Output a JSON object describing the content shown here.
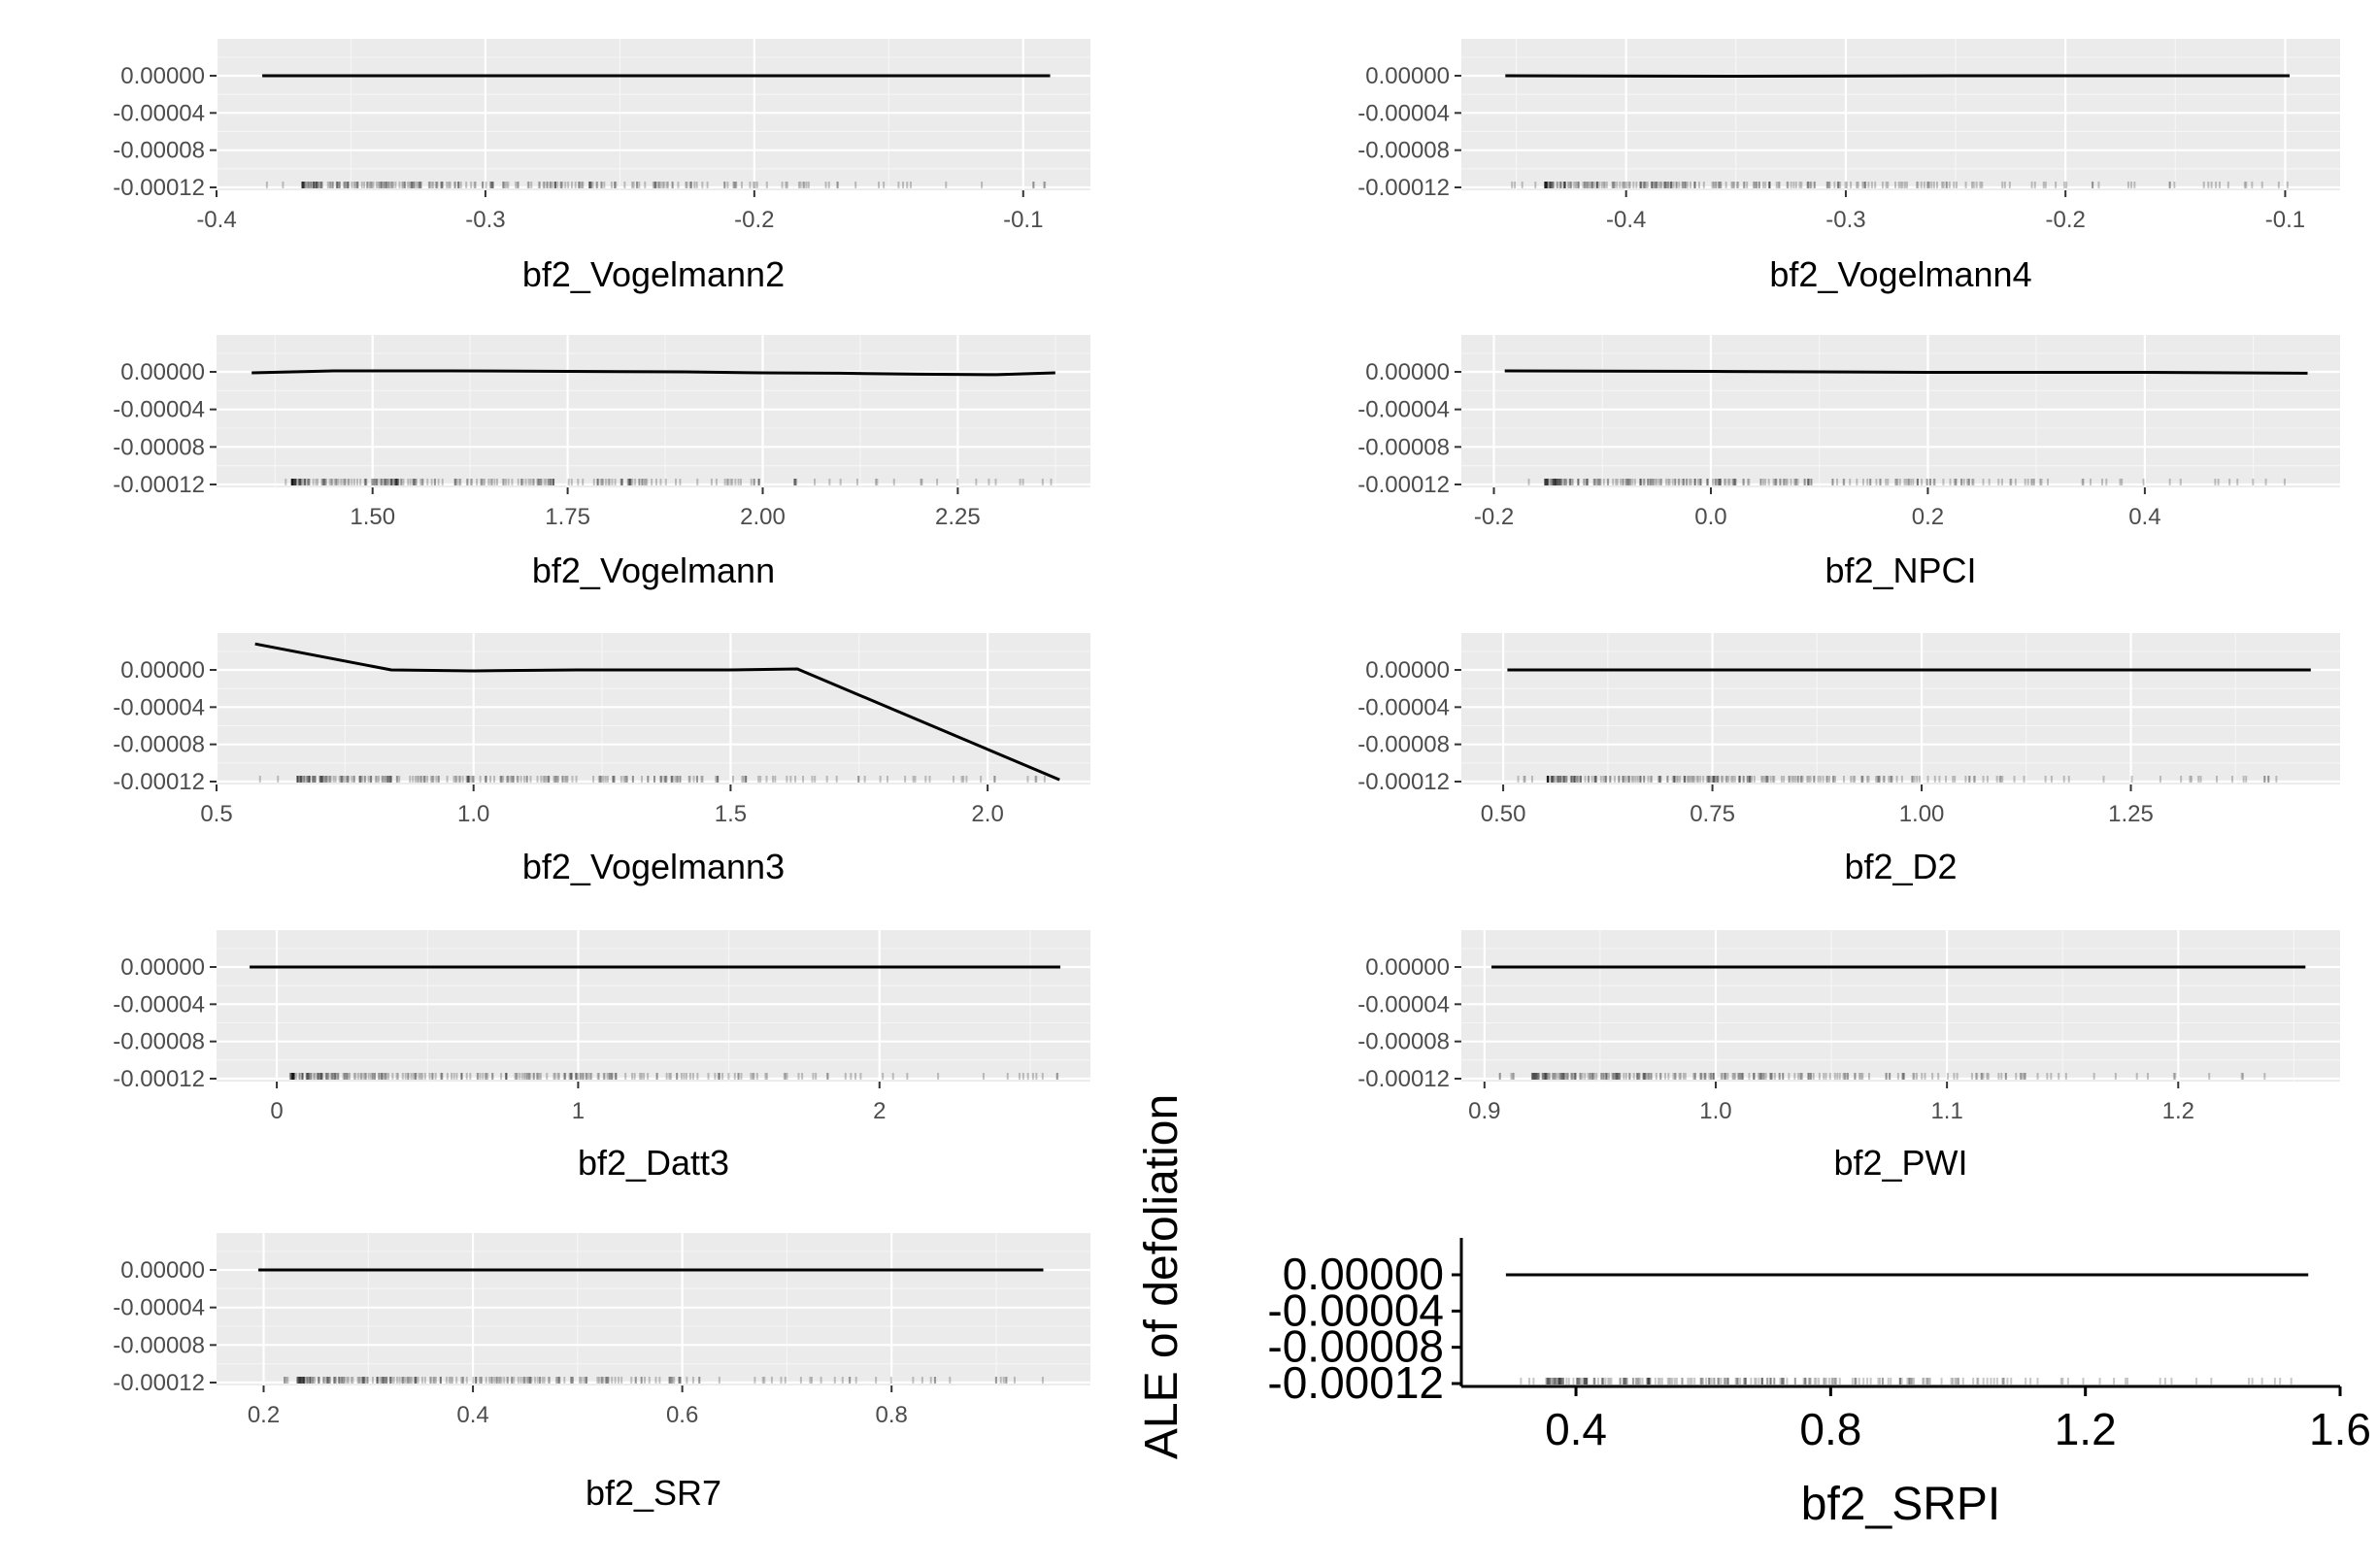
{
  "ylabel": "ALE of defoliation",
  "chart_data": [
    {
      "type": "line",
      "title": "",
      "xlabel": "bf2_Vogelmann2",
      "ylabel": "ALE of defoliation",
      "xlim": [
        -0.4,
        -0.075
      ],
      "ylim": [
        -0.00012,
        0.0
      ],
      "xticks": [
        -0.4,
        -0.3,
        -0.2,
        -0.1
      ],
      "xtick_labels": [
        "-0.4",
        "-0.3",
        "-0.2",
        "-0.1"
      ],
      "yticks": [
        0.0,
        -4e-05,
        -8e-05,
        -0.00012
      ],
      "ytick_labels": [
        "0.00000",
        "-0.00004",
        "-0.00008",
        "-0.00012"
      ],
      "grid": true,
      "x": [
        -0.383,
        -0.3,
        -0.2,
        -0.09
      ],
      "y": [
        0.0,
        0.0,
        0.0,
        0.0
      ],
      "rug_range": [
        -0.383,
        -0.085
      ]
    },
    {
      "type": "line",
      "title": "",
      "xlabel": "bf2_Vogelmann4",
      "ylabel": "ALE of defoliation",
      "xlim": [
        -0.475,
        -0.075
      ],
      "ylim": [
        -0.00012,
        0.0
      ],
      "xticks": [
        -0.4,
        -0.3,
        -0.2,
        -0.1
      ],
      "xtick_labels": [
        "-0.4",
        "-0.3",
        "-0.2",
        "-0.1"
      ],
      "yticks": [
        0.0,
        -4e-05,
        -8e-05,
        -0.00012
      ],
      "ytick_labels": [
        "0.00000",
        "-0.00004",
        "-0.00008",
        "-0.00012"
      ],
      "grid": true,
      "x": [
        -0.455,
        -0.35,
        -0.25,
        -0.15,
        -0.098
      ],
      "y": [
        0.0,
        -5e-07,
        0.0,
        0.0,
        0.0
      ],
      "rug_range": [
        -0.455,
        -0.095
      ]
    },
    {
      "type": "line",
      "title": "",
      "xlabel": "bf2_Vogelmann",
      "ylabel": "ALE of defoliation",
      "xlim": [
        1.3,
        2.42
      ],
      "ylim": [
        -0.00012,
        0.0
      ],
      "xticks": [
        1.5,
        1.75,
        2.0,
        2.25
      ],
      "xtick_labels": [
        "1.50",
        "1.75",
        "2.00",
        "2.25"
      ],
      "yticks": [
        0.0,
        -4e-05,
        -8e-05,
        -0.00012
      ],
      "ytick_labels": [
        "0.00000",
        "-0.00004",
        "-0.00008",
        "-0.00012"
      ],
      "grid": true,
      "x": [
        1.345,
        1.45,
        1.6,
        1.75,
        1.9,
        2.0,
        2.1,
        2.2,
        2.3,
        2.375
      ],
      "y": [
        -1e-06,
        1e-06,
        1e-06,
        5e-07,
        0.0,
        -1e-06,
        -1.5e-06,
        -2.5e-06,
        -3e-06,
        -1e-06
      ],
      "rug_range": [
        1.345,
        2.375
      ]
    },
    {
      "type": "line",
      "title": "",
      "xlabel": "bf2_NPCI",
      "ylabel": "ALE of defoliation",
      "xlim": [
        -0.23,
        0.58
      ],
      "ylim": [
        -0.00012,
        0.0
      ],
      "xticks": [
        -0.2,
        0.0,
        0.2,
        0.4
      ],
      "xtick_labels": [
        "-0.2",
        "0.0",
        "0.2",
        "0.4"
      ],
      "yticks": [
        0.0,
        -4e-05,
        -8e-05,
        -0.00012
      ],
      "ytick_labels": [
        "0.00000",
        "-0.00004",
        "-0.00008",
        "-0.00012"
      ],
      "grid": true,
      "x": [
        -0.19,
        0.0,
        0.2,
        0.4,
        0.55
      ],
      "y": [
        1e-06,
        5e-07,
        -5e-07,
        -5e-07,
        -1.5e-06
      ],
      "rug_range": [
        -0.19,
        0.55
      ]
    },
    {
      "type": "line",
      "title": "",
      "xlabel": "bf2_Vogelmann3",
      "ylabel": "ALE of defoliation",
      "xlim": [
        0.5,
        2.2
      ],
      "ylim": [
        -0.00012,
        0.0
      ],
      "xticks": [
        0.5,
        1.0,
        1.5,
        2.0
      ],
      "xtick_labels": [
        "0.5",
        "1.0",
        "1.5",
        "2.0"
      ],
      "yticks": [
        0.0,
        -4e-05,
        -8e-05,
        -0.00012
      ],
      "ytick_labels": [
        "0.00000",
        "-0.00004",
        "-0.00008",
        "-0.00012"
      ],
      "grid": true,
      "x": [
        0.575,
        0.84,
        1.0,
        1.2,
        1.4,
        1.5,
        1.63,
        2.14
      ],
      "y": [
        2.8e-05,
        0.0,
        -1e-06,
        0.0,
        0.0,
        0.0,
        1e-06,
        -0.000118
      ],
      "rug_range": [
        0.58,
        2.13
      ]
    },
    {
      "type": "line",
      "title": "",
      "xlabel": "bf2_D2",
      "ylabel": "ALE of defoliation",
      "xlim": [
        0.45,
        1.5
      ],
      "ylim": [
        -0.00012,
        0.0
      ],
      "xticks": [
        0.5,
        0.75,
        1.0,
        1.25
      ],
      "xtick_labels": [
        "0.50",
        "0.75",
        "1.00",
        "1.25"
      ],
      "yticks": [
        0.0,
        -4e-05,
        -8e-05,
        -0.00012
      ],
      "ytick_labels": [
        "0.00000",
        "-0.00004",
        "-0.00008",
        "-0.00012"
      ],
      "grid": true,
      "x": [
        0.505,
        1.0,
        1.465
      ],
      "y": [
        0.0,
        0.0,
        0.0
      ],
      "rug_range": [
        0.505,
        1.465
      ]
    },
    {
      "type": "line",
      "title": "",
      "xlabel": "bf2_Datt3",
      "ylabel": "ALE of defoliation",
      "xlim": [
        -0.2,
        2.7
      ],
      "ylim": [
        -0.00012,
        0.0
      ],
      "xticks": [
        0,
        1,
        2
      ],
      "xtick_labels": [
        "0",
        "1",
        "2"
      ],
      "yticks": [
        0.0,
        -4e-05,
        -8e-05,
        -0.00012
      ],
      "ytick_labels": [
        "0.00000",
        "-0.00004",
        "-0.00008",
        "-0.00012"
      ],
      "grid": true,
      "x": [
        -0.09,
        1.0,
        2.6
      ],
      "y": [
        0.0,
        0.0,
        0.0
      ],
      "rug_range": [
        -0.09,
        2.6
      ]
    },
    {
      "type": "line",
      "title": "",
      "xlabel": "bf2_PWI",
      "ylabel": "ALE of defoliation",
      "xlim": [
        0.89,
        1.27
      ],
      "ylim": [
        -0.00012,
        0.0
      ],
      "xticks": [
        0.9,
        1.0,
        1.1,
        1.2
      ],
      "xtick_labels": [
        "0.9",
        "1.0",
        "1.1",
        "1.2"
      ],
      "yticks": [
        0.0,
        -4e-05,
        -8e-05,
        -0.00012
      ],
      "ytick_labels": [
        "0.00000",
        "-0.00004",
        "-0.00008",
        "-0.00012"
      ],
      "grid": true,
      "x": [
        0.903,
        1.1,
        1.255
      ],
      "y": [
        0.0,
        0.0,
        0.0
      ],
      "rug_range": [
        0.903,
        1.255
      ]
    },
    {
      "type": "line",
      "title": "",
      "xlabel": "bf2_SR7",
      "ylabel": "ALE of defoliation",
      "xlim": [
        0.155,
        0.99
      ],
      "ylim": [
        -0.00012,
        0.0
      ],
      "xticks": [
        0.2,
        0.4,
        0.6,
        0.8
      ],
      "xtick_labels": [
        "0.2",
        "0.4",
        "0.6",
        "0.8"
      ],
      "yticks": [
        0.0,
        -4e-05,
        -8e-05,
        -0.00012
      ],
      "ytick_labels": [
        "0.00000",
        "-0.00004",
        "-0.00008",
        "-0.00012"
      ],
      "grid": true,
      "x": [
        0.195,
        0.6,
        0.945
      ],
      "y": [
        0.0,
        0.0,
        0.0
      ],
      "rug_range": [
        0.195,
        0.945
      ]
    },
    {
      "type": "line",
      "title": "",
      "xlabel": "bf2_SRPI",
      "ylabel": "ALE of defoliation",
      "xlim": [
        0.22,
        1.6
      ],
      "ylim": [
        -0.00012,
        0.0
      ],
      "xticks": [
        0.4,
        0.8,
        1.2,
        1.6
      ],
      "xtick_labels": [
        "0.4",
        "0.8",
        "1.2",
        "1.6"
      ],
      "yticks": [
        0.0,
        -4e-05,
        -8e-05,
        -0.00012
      ],
      "ytick_labels": [
        "0.00000",
        "-0.00004",
        "-0.00008",
        "-0.00012"
      ],
      "grid": false,
      "x": [
        0.29,
        0.9,
        1.55
      ],
      "y": [
        0.0,
        0.0,
        0.0
      ],
      "rug_range": [
        0.29,
        1.55
      ]
    }
  ]
}
